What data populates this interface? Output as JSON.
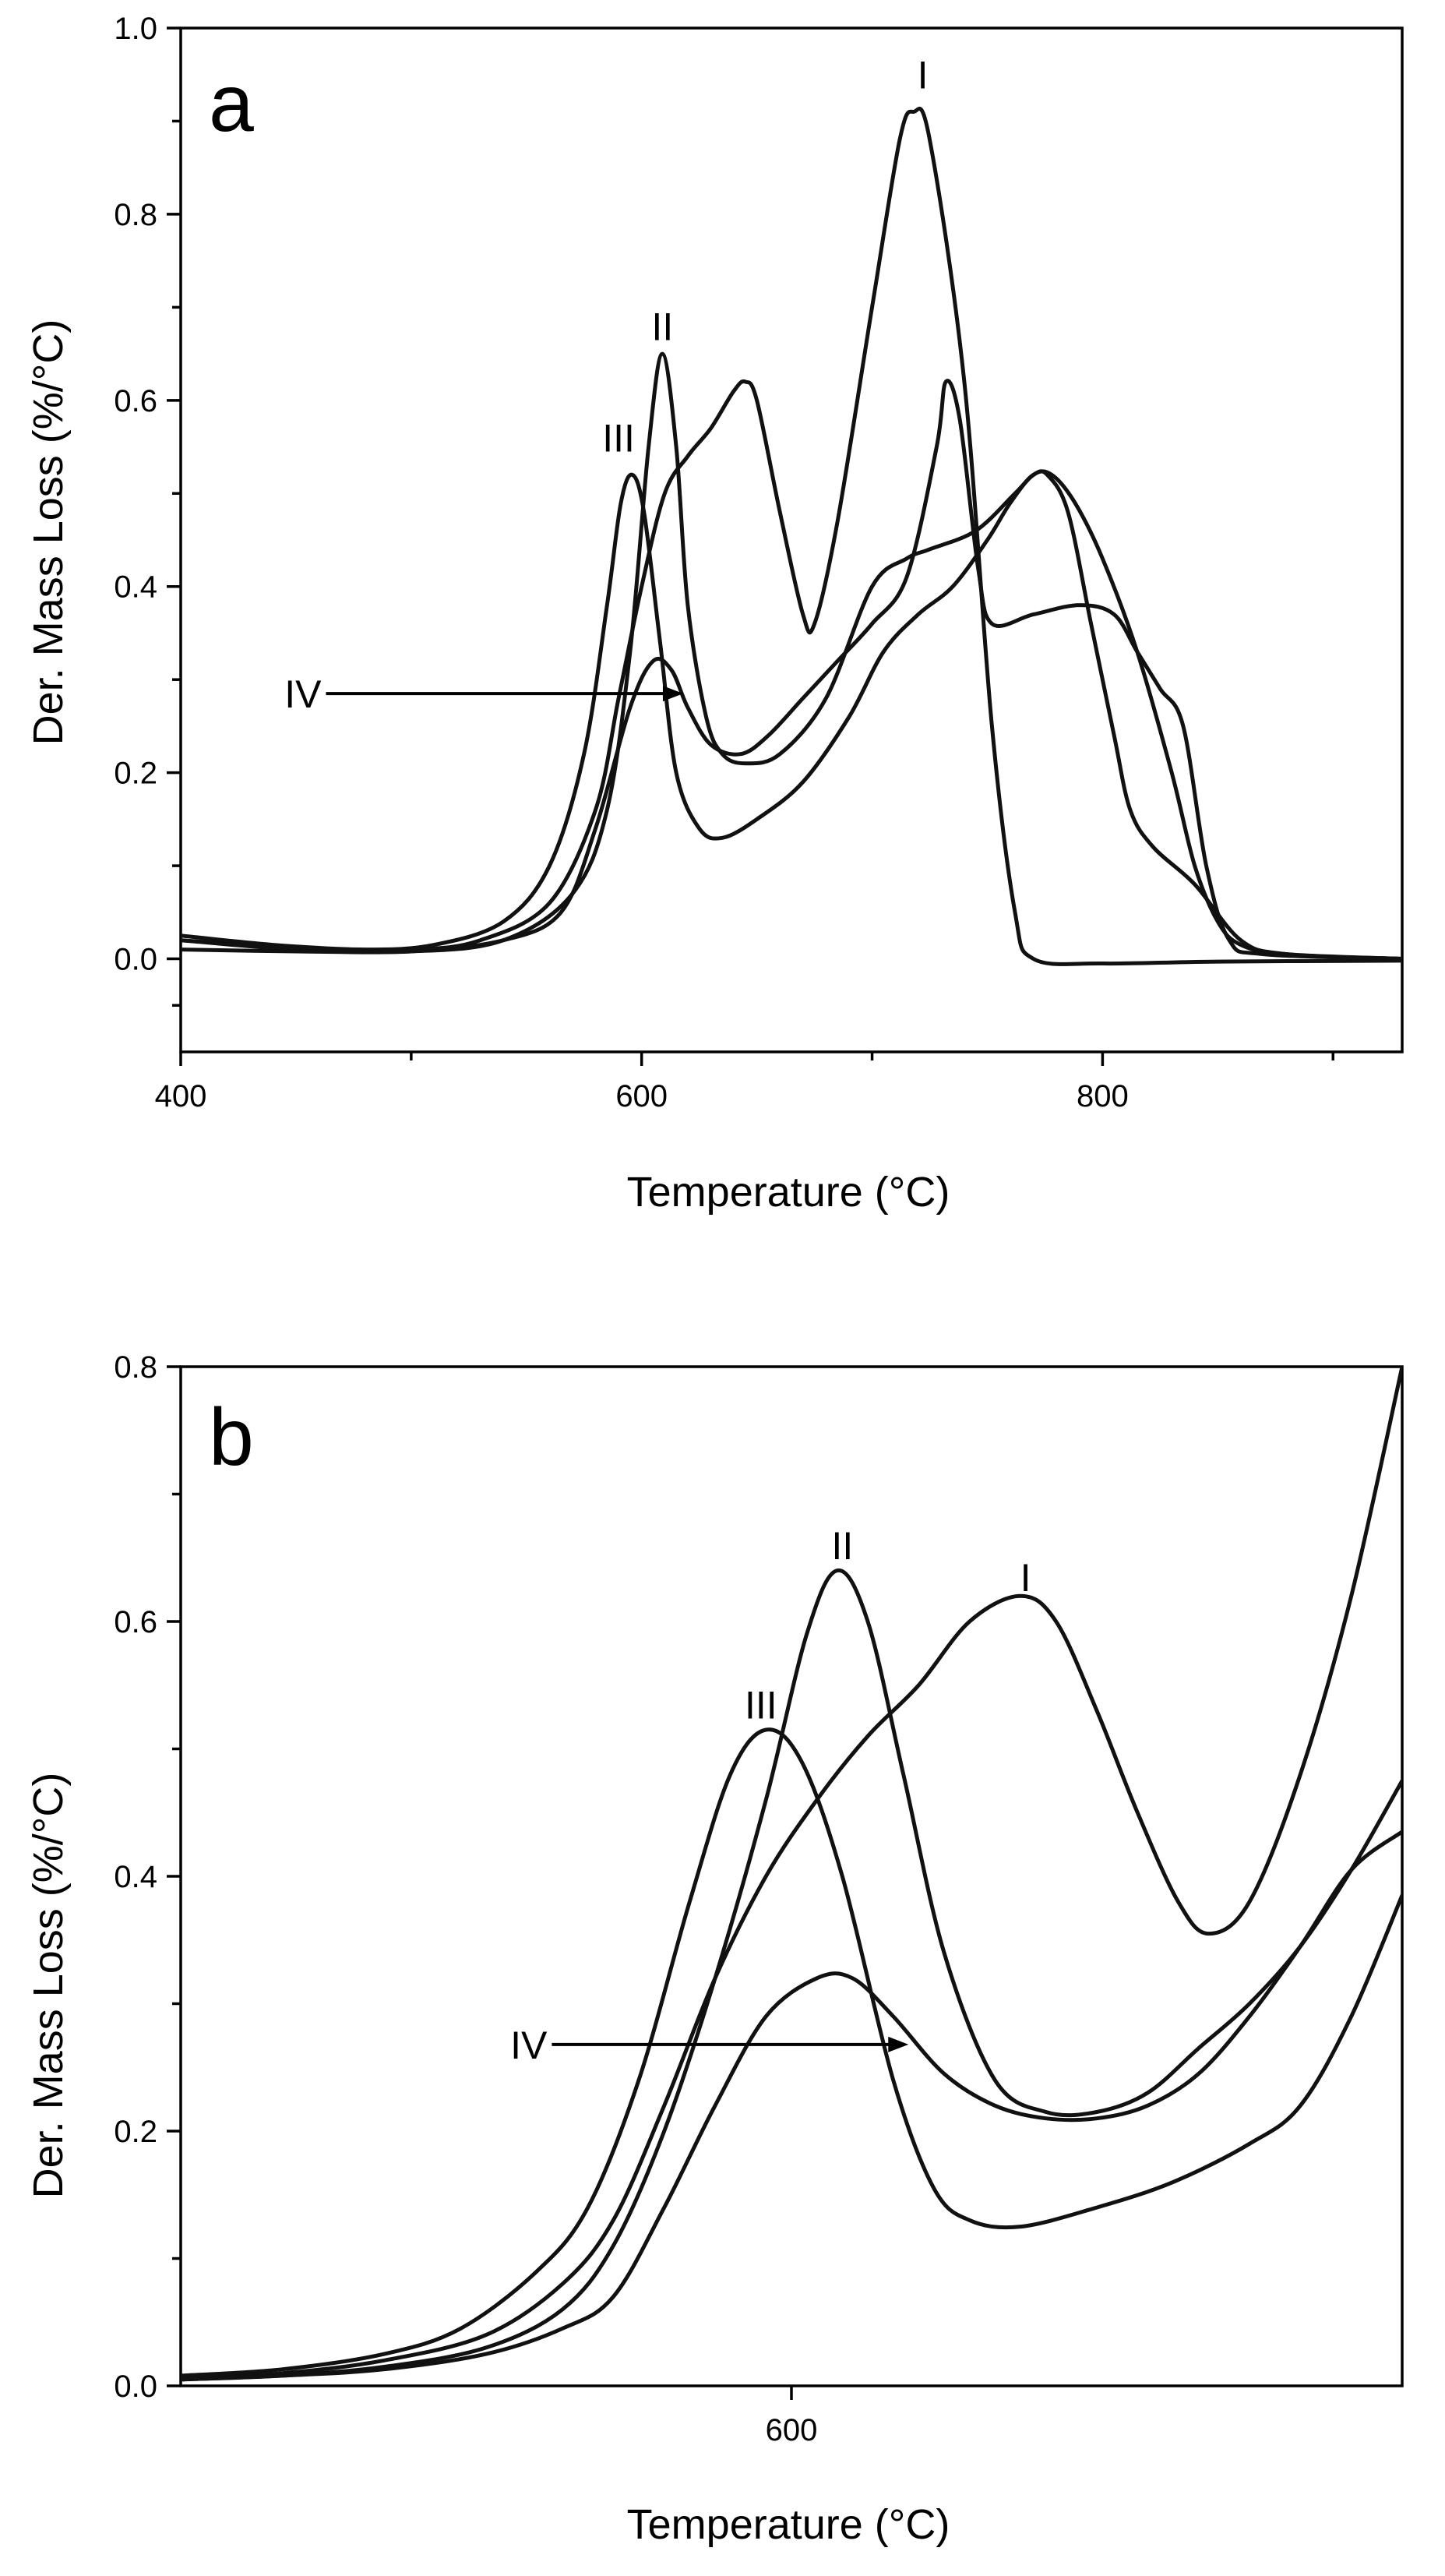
{
  "chart_data": [
    {
      "type": "line",
      "panel_label": "a",
      "xlabel": "Temperature (°C)",
      "ylabel": "Der. Mass Loss (%/°C)",
      "xlim": [
        400,
        930
      ],
      "ylim": [
        -0.1,
        1.0
      ],
      "x_major_ticks": [
        400,
        600,
        800
      ],
      "x_tick_labels": [
        "400",
        "600",
        "800"
      ],
      "x_minor_ticks": [
        500,
        700,
        900
      ],
      "y_ticks": [
        0.0,
        0.2,
        0.4,
        0.6,
        0.8,
        1.0
      ],
      "y_tick_labels": [
        "0.0",
        "0.2",
        "0.4",
        "0.6",
        "0.8",
        "1.0"
      ],
      "grid": false,
      "series": [
        {
          "name": "I",
          "points": [
            [
              400,
              0.02
            ],
            [
              450,
              0.012
            ],
            [
              500,
              0.01
            ],
            [
              530,
              0.02
            ],
            [
              560,
              0.06
            ],
            [
              580,
              0.16
            ],
            [
              590,
              0.28
            ],
            [
              600,
              0.4
            ],
            [
              610,
              0.5
            ],
            [
              620,
              0.54
            ],
            [
              630,
              0.57
            ],
            [
              640,
              0.61
            ],
            [
              645,
              0.62
            ],
            [
              650,
              0.6
            ],
            [
              660,
              0.48
            ],
            [
              670,
              0.37
            ],
            [
              675,
              0.36
            ],
            [
              685,
              0.47
            ],
            [
              700,
              0.7
            ],
            [
              712,
              0.88
            ],
            [
              718,
              0.91
            ],
            [
              725,
              0.88
            ],
            [
              740,
              0.62
            ],
            [
              752,
              0.25
            ],
            [
              762,
              0.05
            ],
            [
              770,
              0.0
            ],
            [
              800,
              -0.005
            ],
            [
              850,
              -0.003
            ],
            [
              930,
              -0.002
            ]
          ]
        },
        {
          "name": "II",
          "points": [
            [
              400,
              0.02
            ],
            [
              450,
              0.01
            ],
            [
              500,
              0.008
            ],
            [
              540,
              0.02
            ],
            [
              570,
              0.07
            ],
            [
              585,
              0.16
            ],
            [
              595,
              0.33
            ],
            [
              603,
              0.55
            ],
            [
              609,
              0.65
            ],
            [
              615,
              0.55
            ],
            [
              620,
              0.38
            ],
            [
              628,
              0.26
            ],
            [
              635,
              0.22
            ],
            [
              645,
              0.21
            ],
            [
              660,
              0.22
            ],
            [
              680,
              0.28
            ],
            [
              700,
              0.4
            ],
            [
              715,
              0.43
            ],
            [
              725,
              0.44
            ],
            [
              745,
              0.46
            ],
            [
              762,
              0.5
            ],
            [
              770,
              0.52
            ],
            [
              776,
              0.52
            ],
            [
              785,
              0.48
            ],
            [
              795,
              0.36
            ],
            [
              805,
              0.24
            ],
            [
              812,
              0.16
            ],
            [
              822,
              0.12
            ],
            [
              840,
              0.08
            ],
            [
              860,
              0.02
            ],
            [
              880,
              0.005
            ],
            [
              930,
              0.0
            ]
          ]
        },
        {
          "name": "III",
          "points": [
            [
              400,
              0.025
            ],
            [
              440,
              0.015
            ],
            [
              480,
              0.01
            ],
            [
              510,
              0.015
            ],
            [
              540,
              0.04
            ],
            [
              560,
              0.1
            ],
            [
              575,
              0.22
            ],
            [
              585,
              0.38
            ],
            [
              591,
              0.49
            ],
            [
              596,
              0.52
            ],
            [
              601,
              0.48
            ],
            [
              608,
              0.34
            ],
            [
              615,
              0.2
            ],
            [
              625,
              0.14
            ],
            [
              635,
              0.13
            ],
            [
              650,
              0.15
            ],
            [
              670,
              0.19
            ],
            [
              690,
              0.26
            ],
            [
              705,
              0.33
            ],
            [
              720,
              0.37
            ],
            [
              735,
              0.4
            ],
            [
              750,
              0.45
            ],
            [
              760,
              0.49
            ],
            [
              770,
              0.52
            ],
            [
              778,
              0.52
            ],
            [
              788,
              0.49
            ],
            [
              800,
              0.43
            ],
            [
              815,
              0.33
            ],
            [
              830,
              0.2
            ],
            [
              840,
              0.1
            ],
            [
              850,
              0.04
            ],
            [
              860,
              0.015
            ],
            [
              880,
              0.005
            ],
            [
              930,
              0.0
            ]
          ]
        },
        {
          "name": "IV",
          "points": [
            [
              400,
              0.01
            ],
            [
              450,
              0.008
            ],
            [
              500,
              0.008
            ],
            [
              540,
              0.02
            ],
            [
              565,
              0.05
            ],
            [
              580,
              0.14
            ],
            [
              595,
              0.27
            ],
            [
              605,
              0.32
            ],
            [
              613,
              0.31
            ],
            [
              620,
              0.27
            ],
            [
              630,
              0.23
            ],
            [
              643,
              0.22
            ],
            [
              655,
              0.24
            ],
            [
              670,
              0.28
            ],
            [
              685,
              0.32
            ],
            [
              700,
              0.36
            ],
            [
              715,
              0.41
            ],
            [
              728,
              0.55
            ],
            [
              732,
              0.62
            ],
            [
              738,
              0.58
            ],
            [
              746,
              0.42
            ],
            [
              752,
              0.36
            ],
            [
              770,
              0.37
            ],
            [
              790,
              0.38
            ],
            [
              805,
              0.37
            ],
            [
              815,
              0.33
            ],
            [
              825,
              0.29
            ],
            [
              835,
              0.25
            ],
            [
              845,
              0.1
            ],
            [
              855,
              0.02
            ],
            [
              870,
              0.005
            ],
            [
              930,
              0.0
            ]
          ]
        }
      ],
      "annotations": [
        {
          "text": "I",
          "x": 722,
          "y": 0.95
        },
        {
          "text": "II",
          "x": 609,
          "y": 0.68
        },
        {
          "text": "III",
          "x": 590,
          "y": 0.56
        },
        {
          "text": "IV",
          "x": 461,
          "y": 0.285,
          "arrow_to": [
            618,
            0.285
          ]
        }
      ]
    },
    {
      "type": "line",
      "panel_label": "b",
      "xlabel": "Temperature (°C)",
      "ylabel": "Der. Mass Loss (%/°C)",
      "xlim": [
        480,
        720
      ],
      "ylim": [
        0.0,
        0.8
      ],
      "x_major_ticks": [
        600
      ],
      "x_tick_labels": [
        "600"
      ],
      "x_minor_ticks": [],
      "y_ticks": [
        0.0,
        0.2,
        0.4,
        0.6,
        0.8
      ],
      "y_tick_labels": [
        "0.0",
        "0.2",
        "0.4",
        "0.6",
        "0.8"
      ],
      "grid": false,
      "series": [
        {
          "name": "I",
          "points": [
            [
              480,
              0.006
            ],
            [
              500,
              0.01
            ],
            [
              520,
              0.02
            ],
            [
              540,
              0.04
            ],
            [
              555,
              0.08
            ],
            [
              565,
              0.13
            ],
            [
              575,
              0.22
            ],
            [
              585,
              0.32
            ],
            [
              595,
              0.4
            ],
            [
              605,
              0.46
            ],
            [
              615,
              0.51
            ],
            [
              625,
              0.55
            ],
            [
              635,
              0.6
            ],
            [
              645,
              0.62
            ],
            [
              652,
              0.6
            ],
            [
              660,
              0.53
            ],
            [
              668,
              0.45
            ],
            [
              676,
              0.38
            ],
            [
              682,
              0.355
            ],
            [
              690,
              0.38
            ],
            [
              700,
              0.48
            ],
            [
              710,
              0.62
            ],
            [
              720,
              0.8
            ]
          ]
        },
        {
          "name": "II",
          "points": [
            [
              480,
              0.005
            ],
            [
              500,
              0.008
            ],
            [
              520,
              0.015
            ],
            [
              540,
              0.03
            ],
            [
              555,
              0.06
            ],
            [
              565,
              0.11
            ],
            [
              575,
              0.2
            ],
            [
              585,
              0.32
            ],
            [
              595,
              0.46
            ],
            [
              603,
              0.59
            ],
            [
              609,
              0.64
            ],
            [
              615,
              0.6
            ],
            [
              622,
              0.48
            ],
            [
              630,
              0.34
            ],
            [
              640,
              0.24
            ],
            [
              650,
              0.215
            ],
            [
              660,
              0.215
            ],
            [
              670,
              0.23
            ],
            [
              680,
              0.265
            ],
            [
              690,
              0.3
            ],
            [
              700,
              0.345
            ],
            [
              710,
              0.405
            ],
            [
              720,
              0.475
            ]
          ]
        },
        {
          "name": "III",
          "points": [
            [
              480,
              0.008
            ],
            [
              500,
              0.013
            ],
            [
              520,
              0.025
            ],
            [
              535,
              0.045
            ],
            [
              550,
              0.09
            ],
            [
              560,
              0.14
            ],
            [
              570,
              0.24
            ],
            [
              580,
              0.38
            ],
            [
              588,
              0.48
            ],
            [
              595,
              0.515
            ],
            [
              602,
              0.49
            ],
            [
              610,
              0.4
            ],
            [
              620,
              0.24
            ],
            [
              628,
              0.155
            ],
            [
              635,
              0.13
            ],
            [
              645,
              0.125
            ],
            [
              660,
              0.14
            ],
            [
              675,
              0.16
            ],
            [
              690,
              0.19
            ],
            [
              700,
              0.22
            ],
            [
              710,
              0.29
            ],
            [
              720,
              0.385
            ]
          ]
        },
        {
          "name": "IV",
          "points": [
            [
              480,
              0.005
            ],
            [
              500,
              0.008
            ],
            [
              520,
              0.013
            ],
            [
              540,
              0.025
            ],
            [
              555,
              0.045
            ],
            [
              565,
              0.07
            ],
            [
              575,
              0.14
            ],
            [
              585,
              0.22
            ],
            [
              595,
              0.29
            ],
            [
              605,
              0.32
            ],
            [
              612,
              0.32
            ],
            [
              620,
              0.29
            ],
            [
              630,
              0.245
            ],
            [
              640,
              0.22
            ],
            [
              650,
              0.21
            ],
            [
              660,
              0.21
            ],
            [
              670,
              0.22
            ],
            [
              680,
              0.245
            ],
            [
              690,
              0.29
            ],
            [
              700,
              0.345
            ],
            [
              710,
              0.405
            ],
            [
              720,
              0.435
            ]
          ]
        }
      ],
      "annotations": [
        {
          "text": "I",
          "x": 646,
          "y": 0.635
        },
        {
          "text": "II",
          "x": 610,
          "y": 0.66
        },
        {
          "text": "III",
          "x": 594,
          "y": 0.535
        },
        {
          "text": "IV",
          "x": 552,
          "y": 0.268,
          "arrow_to": [
            623,
            0.268
          ]
        }
      ]
    }
  ]
}
